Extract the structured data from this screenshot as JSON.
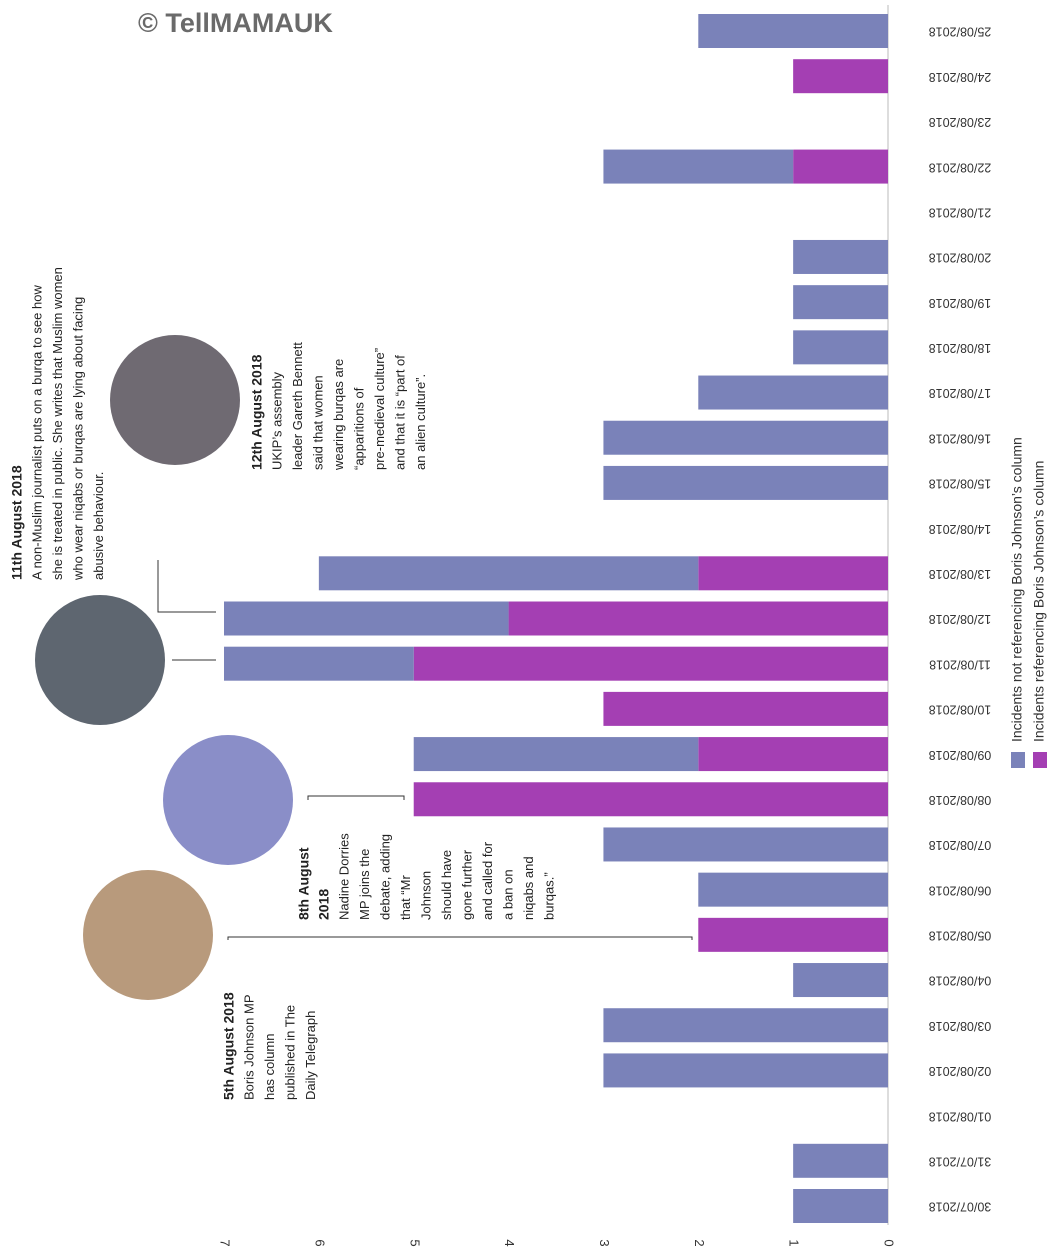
{
  "chart_data": {
    "type": "bar",
    "orientation": "horizontal",
    "stacked": true,
    "credit": "© TellMAMAUK",
    "categories": [
      "30/07/2018",
      "31/07/2018",
      "01/08/2018",
      "02/08/2018",
      "03/08/2018",
      "04/08/2018",
      "05/08/2018",
      "06/08/2018",
      "07/08/2018",
      "08/08/2018",
      "09/08/2018",
      "10/08/2018",
      "11/08/2018",
      "12/08/2018",
      "13/08/2018",
      "14/08/2018",
      "15/08/2018",
      "16/08/2018",
      "17/08/2018",
      "18/08/2018",
      "19/08/2018",
      "20/08/2018",
      "21/08/2018",
      "22/08/2018",
      "23/08/2018",
      "24/08/2018",
      "25/08/2018"
    ],
    "series": [
      {
        "name": "Incidents not referencing Boris Johnson’s column",
        "color": "#7a82b9",
        "values": [
          1,
          1,
          0,
          3,
          3,
          1,
          0,
          2,
          3,
          0,
          3,
          0,
          2,
          3,
          4,
          0,
          3,
          3,
          2,
          1,
          1,
          1,
          0,
          2,
          0,
          0,
          2
        ]
      },
      {
        "name": "Incidents referencing Boris Johnson’s column",
        "color": "#a43fb3",
        "values": [
          0,
          0,
          0,
          0,
          0,
          0,
          2,
          0,
          0,
          5,
          2,
          3,
          5,
          4,
          2,
          0,
          0,
          0,
          0,
          0,
          0,
          0,
          0,
          1,
          0,
          1,
          0
        ]
      }
    ],
    "xlim": [
      0,
      7
    ],
    "xticks": [
      0,
      1,
      2,
      3,
      4,
      5,
      6,
      7
    ],
    "annotations": [
      {
        "title": [
          "11th August 2018"
        ],
        "lines": [
          "A non-Muslim journalist puts on a burqa to see how",
          "she is treated in public. She writes that Muslim women",
          "who wear niqabs or burqas are lying about facing",
          "abusive behaviour."
        ]
      },
      {
        "title": [
          "12th August 2018"
        ],
        "lines": [
          "UKIP’s assembly",
          "leader Gareth Bennett",
          "said that women",
          "wearing burqas are",
          "“apparitions of",
          "pre-medieval culture”",
          "and that it is “part of",
          "an alien culture”."
        ]
      },
      {
        "title": [
          "8th August",
          "2018"
        ],
        "lines": [
          "Nadine Dorries",
          "MP joins the",
          "debate, adding",
          "that “Mr",
          "Johnson",
          "should have",
          "gone further",
          "and called for",
          "a ban on",
          "niqabs and",
          "burqas.”"
        ]
      },
      {
        "title": [
          "5th August 2018"
        ],
        "lines": [
          "Boris Johnson MP",
          "has column",
          "published in The",
          "Daily Telegraph"
        ]
      }
    ]
  }
}
